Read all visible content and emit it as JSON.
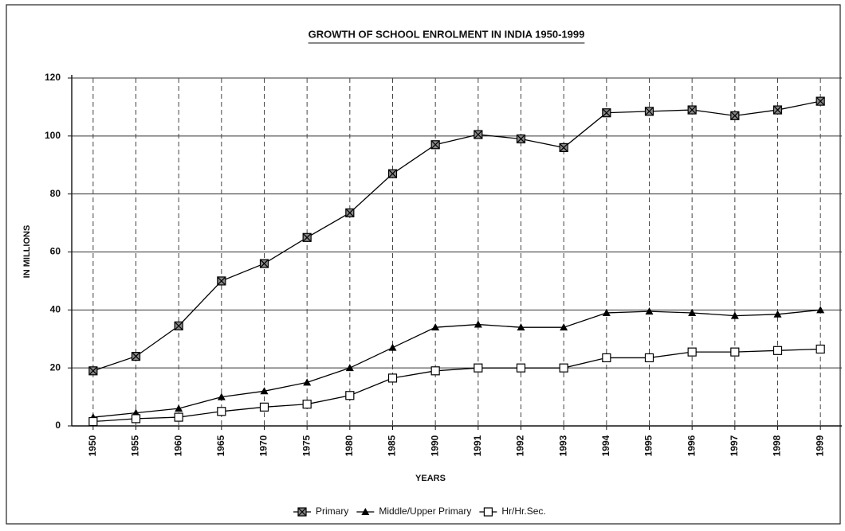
{
  "chart_data": {
    "type": "line",
    "title": "GROWTH OF SCHOOL ENROLMENT IN INDIA 1950-1999",
    "x_label": "YEARS",
    "y_label": "IN MILLIONS",
    "categories": [
      "1950",
      "1955",
      "1960",
      "1965",
      "1970",
      "1975",
      "1980",
      "1985",
      "1990",
      "1991",
      "1992",
      "1993",
      "1994",
      "1995",
      "1996",
      "1997",
      "1998",
      "1999"
    ],
    "series": [
      {
        "name": "Primary",
        "color": "#000000",
        "marker": "crossed-square",
        "values": [
          19,
          24,
          34.5,
          50,
          56,
          65,
          73.5,
          87,
          97,
          100.5,
          99,
          96,
          108,
          108.5,
          109,
          107,
          109,
          112
        ]
      },
      {
        "name": "Middle/Upper Primary",
        "color": "#000000",
        "marker": "triangle",
        "values": [
          3,
          4.5,
          6,
          10,
          12,
          15,
          20,
          27,
          34,
          35,
          34,
          34,
          39,
          39.5,
          39,
          38,
          38.5,
          40
        ]
      },
      {
        "name": "Hr/Hr.Sec.",
        "color": "#000000",
        "marker": "open-square",
        "values": [
          1.5,
          2.5,
          3,
          5,
          6.5,
          7.5,
          10.5,
          16.5,
          19,
          20,
          20,
          20,
          23.5,
          23.5,
          25.5,
          25.5,
          26,
          26.5
        ]
      }
    ],
    "ylim": [
      0,
      120
    ],
    "yticks": [
      0,
      20,
      40,
      60,
      80,
      100,
      120
    ],
    "grid": true
  }
}
